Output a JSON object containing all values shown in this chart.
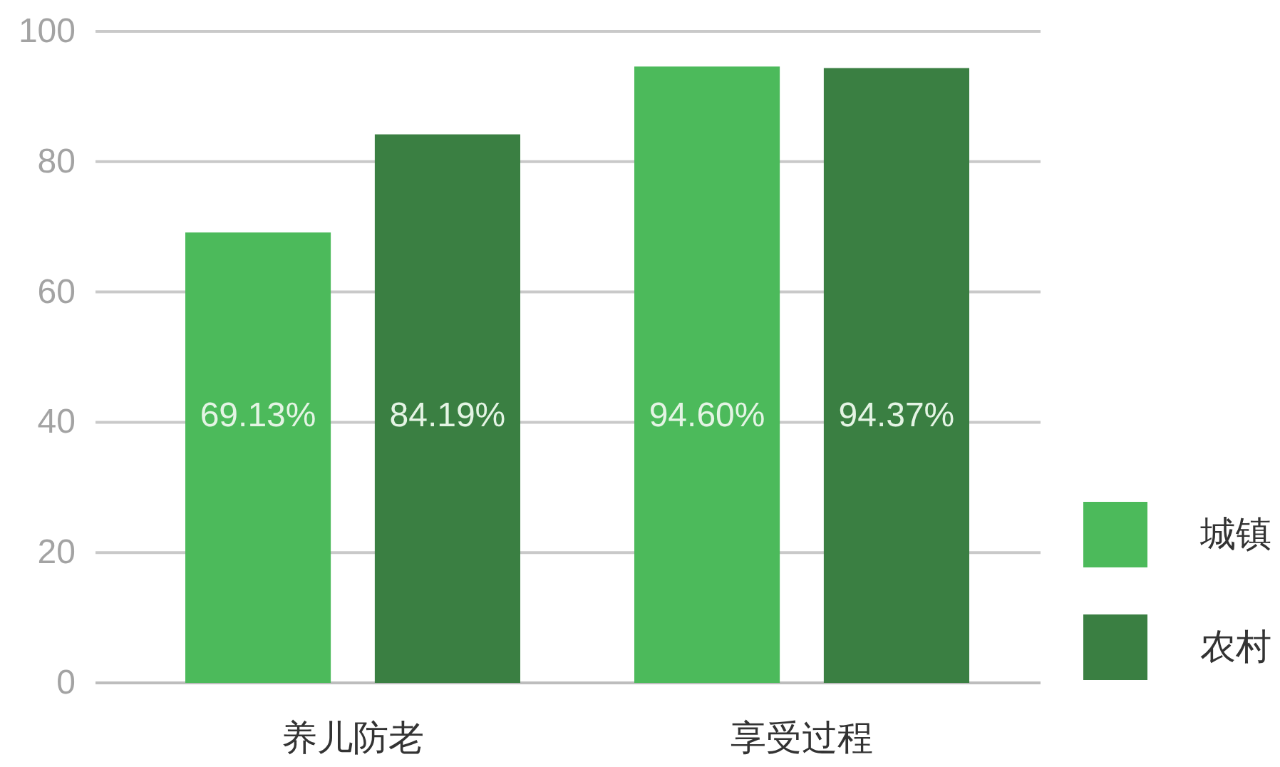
{
  "chart_data": {
    "type": "bar",
    "categories": [
      "养儿防老",
      "享受过程"
    ],
    "series": [
      {
        "name": "城镇",
        "color": "#4cba5b",
        "values": [
          69.13,
          94.6
        ],
        "value_labels": [
          "69.13%",
          "94.60%"
        ]
      },
      {
        "name": "农村",
        "color": "#3a7f42",
        "values": [
          84.19,
          94.37
        ],
        "value_labels": [
          "84.19%",
          "94.37%"
        ]
      }
    ],
    "ylim": [
      0,
      100
    ],
    "yticks": [
      0,
      20,
      40,
      60,
      80,
      100
    ],
    "grid": "y",
    "legend": "right"
  }
}
